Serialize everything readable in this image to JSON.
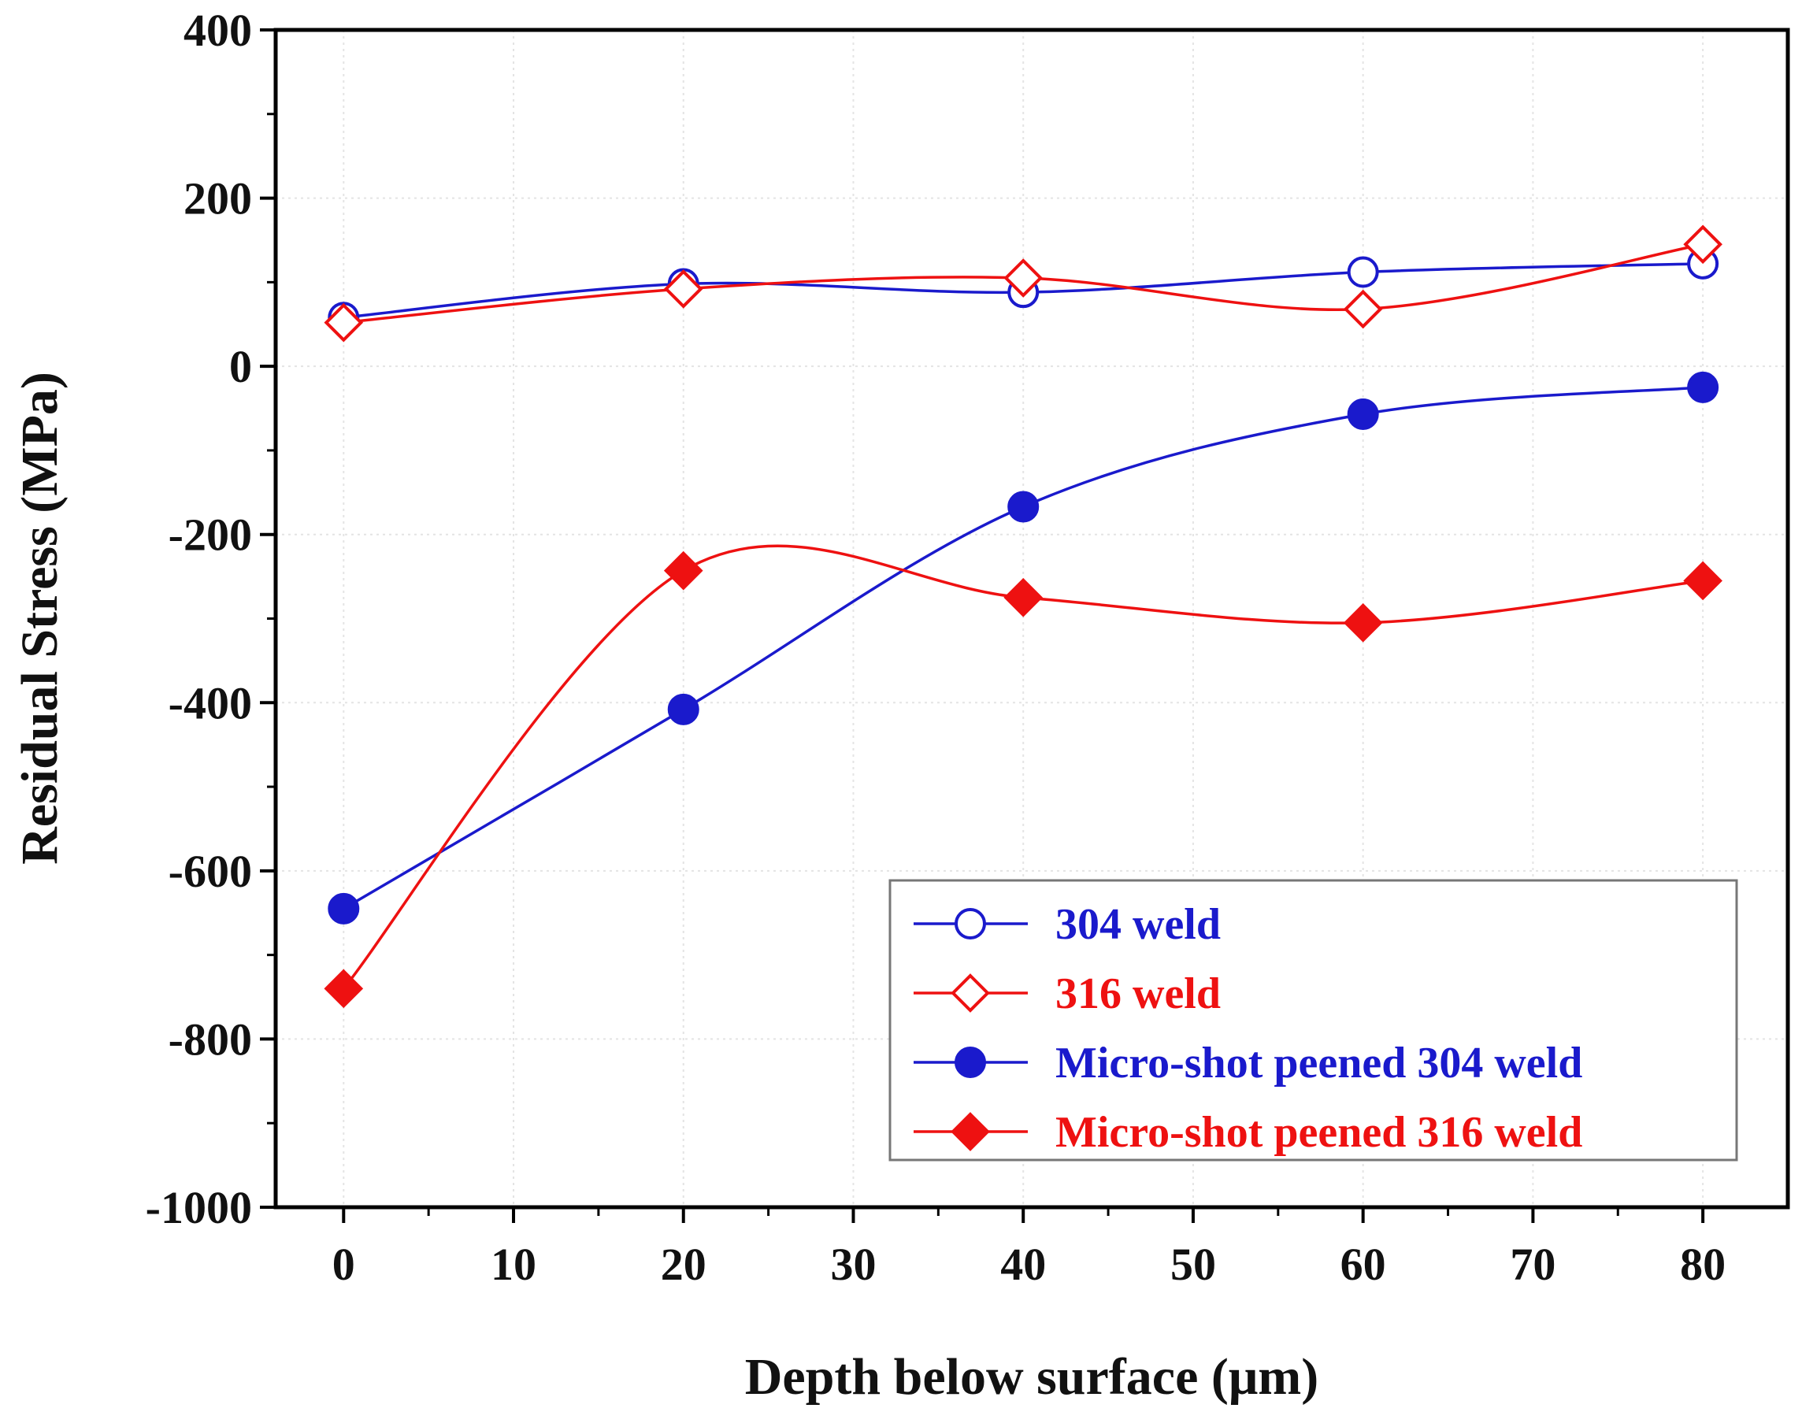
{
  "chart_data": {
    "type": "line",
    "title": "",
    "xlabel": "Depth below surface (μm)",
    "ylabel": "Residual Stress (MPa)",
    "xlim": [
      -4,
      85
    ],
    "ylim": [
      -1000,
      400
    ],
    "xticks": [
      0,
      10,
      20,
      30,
      40,
      50,
      60,
      70,
      80
    ],
    "yticks": [
      -1000,
      -800,
      -600,
      -400,
      -200,
      0,
      200,
      400
    ],
    "grid": true,
    "legend_position": "bottom-right",
    "series": [
      {
        "name": "304 weld",
        "color": "#1a1acc",
        "marker": "circle-open",
        "x": [
          0,
          20,
          40,
          60,
          80
        ],
        "y": [
          58,
          98,
          88,
          112,
          122
        ]
      },
      {
        "name": "316 weld",
        "color": "#ee1111",
        "marker": "diamond-open",
        "x": [
          0,
          20,
          40,
          60,
          80
        ],
        "y": [
          52,
          92,
          105,
          68,
          145
        ]
      },
      {
        "name": "Micro-shot peened 304 weld",
        "color": "#1a1acc",
        "marker": "circle-filled",
        "x": [
          0,
          20,
          40,
          60,
          80
        ],
        "y": [
          -645,
          -408,
          -167,
          -57,
          -25
        ]
      },
      {
        "name": "Micro-shot peened 316 weld",
        "color": "#ee1111",
        "marker": "diamond-filled",
        "x": [
          0,
          20,
          40,
          60,
          80
        ],
        "y": [
          -740,
          -243,
          -275,
          -305,
          -255
        ]
      }
    ]
  }
}
